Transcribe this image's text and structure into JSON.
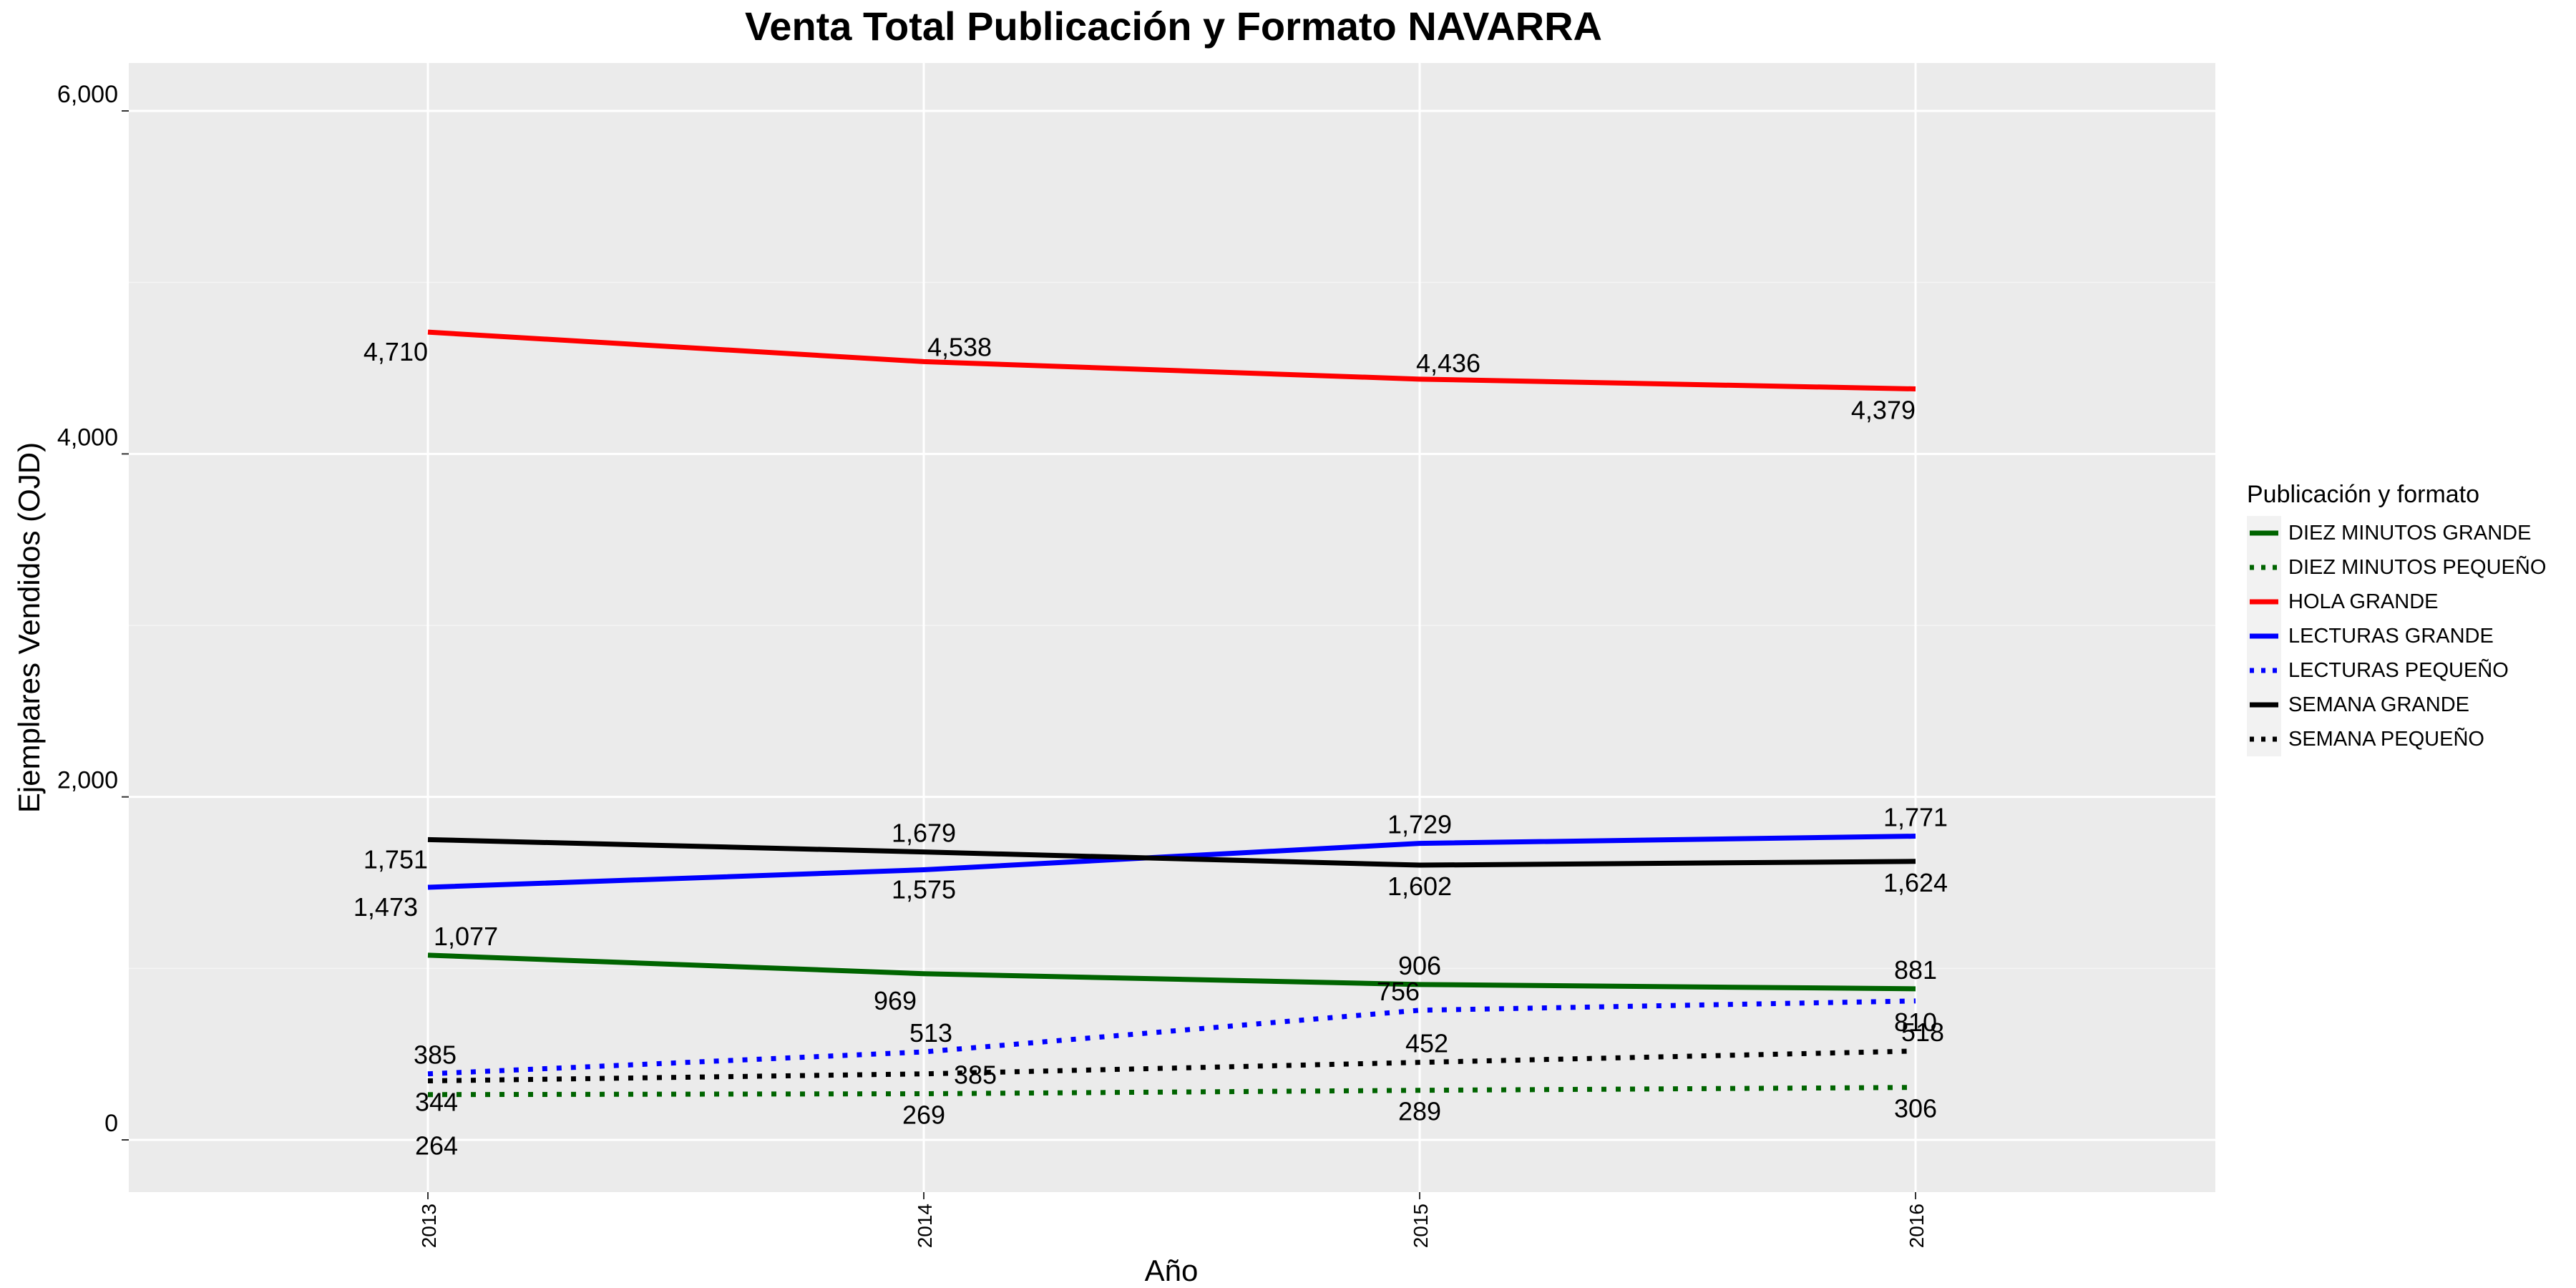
{
  "chart_data": {
    "type": "line",
    "title": "Venta Total Publicación y Formato  NAVARRA",
    "xlabel": "Año",
    "ylabel": "Ejemplares Vendidos (OJD)",
    "x": [
      "2013",
      "2014",
      "2015",
      "2016"
    ],
    "ylim": [
      -300,
      6000
    ],
    "yticks": [
      0,
      2000,
      4000,
      6000
    ],
    "ytick_labels": [
      "0",
      "2,000",
      "4,000",
      "6,000"
    ],
    "grid": true,
    "background": "#ebebeb",
    "legend_title": "Publicación y formato",
    "legend_position": "right",
    "series": [
      {
        "name": "DIEZ MINUTOS GRANDE",
        "color": "#006400",
        "dash": "solid",
        "values": [
          1077,
          969,
          906,
          881
        ],
        "labels": [
          "1,077",
          "969",
          "906",
          "881"
        ]
      },
      {
        "name": "DIEZ MINUTOS PEQUEÑO",
        "color": "#006400",
        "dash": "dotted",
        "values": [
          264,
          269,
          289,
          306
        ],
        "labels": [
          "264",
          "269",
          "289",
          "306"
        ]
      },
      {
        "name": "HOLA GRANDE",
        "color": "#ff0000",
        "dash": "solid",
        "values": [
          4710,
          4538,
          4436,
          4379
        ],
        "labels": [
          "4,710",
          "4,538",
          "4,436",
          "4,379"
        ]
      },
      {
        "name": "LECTURAS GRANDE",
        "color": "#0000ff",
        "dash": "solid",
        "values": [
          1473,
          1575,
          1729,
          1771
        ],
        "labels": [
          "1,473",
          "1,575",
          "1,729",
          "1,771"
        ]
      },
      {
        "name": "LECTURAS PEQUEÑO",
        "color": "#0000ff",
        "dash": "dotted",
        "values": [
          385,
          513,
          756,
          810
        ],
        "labels": [
          "385",
          "513",
          "756",
          "810"
        ]
      },
      {
        "name": "SEMANA GRANDE",
        "color": "#000000",
        "dash": "solid",
        "values": [
          1751,
          1679,
          1602,
          1624
        ],
        "labels": [
          "1,751",
          "1,679",
          "1,602",
          "1,624"
        ]
      },
      {
        "name": "SEMANA PEQUEÑO",
        "color": "#000000",
        "dash": "dotted",
        "values": [
          344,
          385,
          452,
          518
        ],
        "labels": [
          "344",
          "385",
          "452",
          "518"
        ]
      }
    ]
  }
}
